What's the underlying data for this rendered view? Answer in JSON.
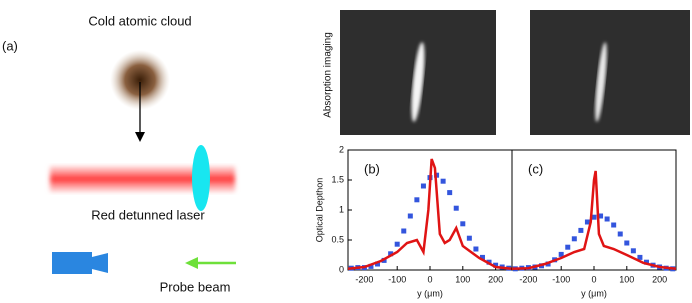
{
  "diagram": {
    "panel_label": "(a)",
    "cloud_label": "Cold atomic cloud",
    "laser_label": "Red detunned laser",
    "probe_label": "Probe beam"
  },
  "imaging": {
    "label": "Absorption imaging"
  },
  "chart_data": [
    {
      "type": "line",
      "label": "(b)",
      "ylabel": "Optical Depthon",
      "xlabel": "y (μm)",
      "xlim": [
        -250,
        250
      ],
      "xticks": [
        -200,
        -100,
        0,
        100,
        200
      ],
      "ylim": [
        0,
        2
      ],
      "yticks": [
        0,
        0.5,
        1,
        1.5,
        2
      ],
      "series": [
        {
          "style": "markers",
          "color": "#3355dd",
          "x": [
            -240,
            -220,
            -200,
            -180,
            -160,
            -140,
            -120,
            -100,
            -80,
            -60,
            -40,
            -20,
            0,
            20,
            40,
            60,
            80,
            100,
            120,
            140,
            160,
            180,
            200,
            220,
            240
          ],
          "values": [
            0.03,
            0.04,
            0.04,
            0.06,
            0.1,
            0.16,
            0.27,
            0.43,
            0.65,
            0.9,
            1.17,
            1.4,
            1.54,
            1.58,
            1.48,
            1.29,
            1.03,
            0.77,
            0.53,
            0.35,
            0.21,
            0.13,
            0.08,
            0.05,
            0.03
          ]
        },
        {
          "style": "line",
          "color": "#e01414",
          "x": [
            -250,
            -200,
            -150,
            -100,
            -70,
            -40,
            -20,
            -5,
            5,
            15,
            30,
            45,
            60,
            80,
            100,
            150,
            200,
            250
          ],
          "values": [
            0.02,
            0.05,
            0.15,
            0.3,
            0.45,
            0.5,
            0.3,
            1.0,
            1.85,
            1.7,
            0.6,
            0.45,
            0.5,
            0.7,
            0.4,
            0.2,
            0.05,
            0.02
          ]
        }
      ]
    },
    {
      "type": "line",
      "label": "(c)",
      "xlabel": "y (μm)",
      "xlim": [
        -250,
        250
      ],
      "xticks": [
        -200,
        -100,
        0,
        100,
        200
      ],
      "ylim": [
        0,
        2
      ],
      "series": [
        {
          "style": "markers",
          "color": "#3355dd",
          "x": [
            -240,
            -220,
            -200,
            -180,
            -160,
            -140,
            -120,
            -100,
            -80,
            -60,
            -40,
            -20,
            0,
            20,
            40,
            60,
            80,
            100,
            120,
            140,
            160,
            180,
            200,
            220,
            240
          ],
          "values": [
            0.02,
            0.03,
            0.04,
            0.05,
            0.07,
            0.1,
            0.17,
            0.26,
            0.38,
            0.52,
            0.66,
            0.8,
            0.88,
            0.9,
            0.85,
            0.75,
            0.6,
            0.45,
            0.32,
            0.21,
            0.13,
            0.08,
            0.05,
            0.03,
            0.02
          ]
        },
        {
          "style": "line",
          "color": "#e01414",
          "x": [
            -250,
            -200,
            -150,
            -100,
            -60,
            -30,
            -10,
            0,
            5,
            15,
            30,
            60,
            100,
            150,
            200,
            250
          ],
          "values": [
            0.02,
            0.03,
            0.1,
            0.2,
            0.3,
            0.35,
            0.8,
            1.5,
            1.65,
            0.6,
            0.4,
            0.35,
            0.25,
            0.12,
            0.05,
            0.02
          ]
        }
      ]
    }
  ]
}
